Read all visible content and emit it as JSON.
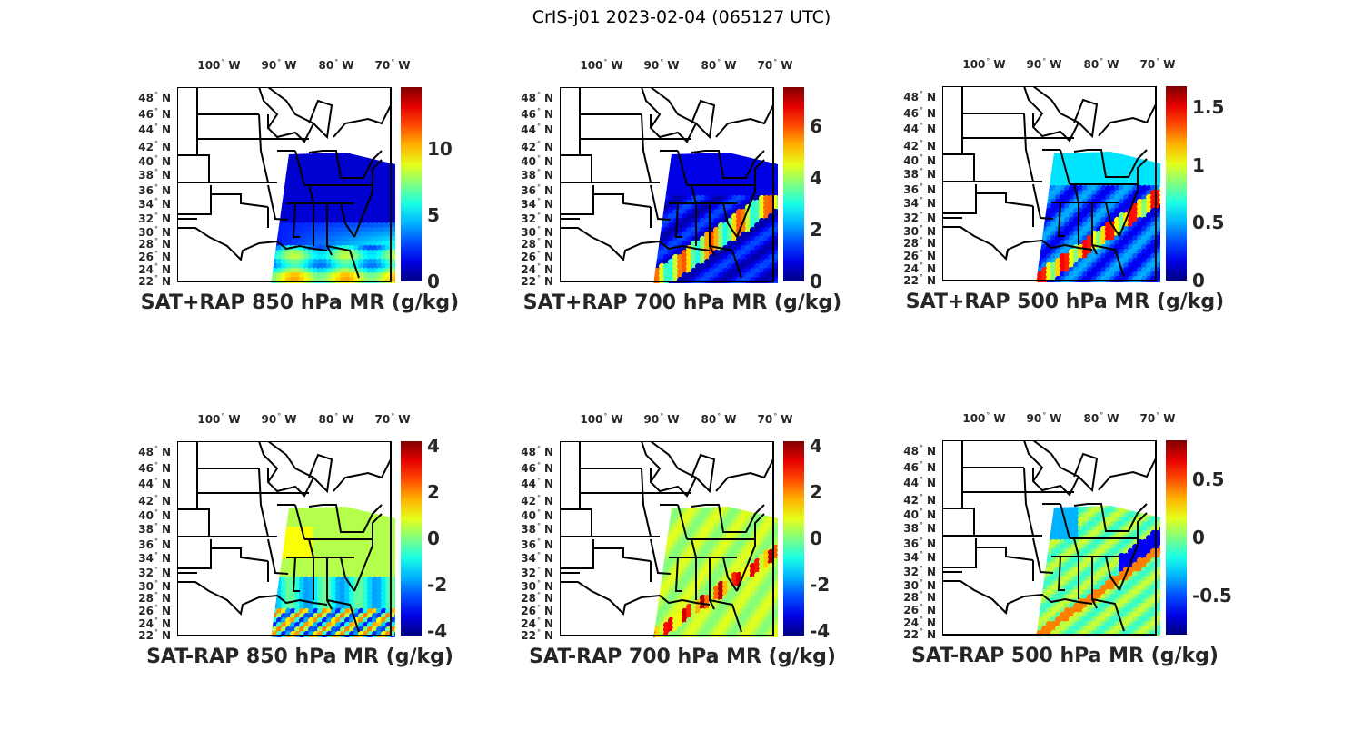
{
  "figure_title": "CrIS-j01 2023-02-04 (065127 UTC)",
  "lon_labels": [
    "100",
    "90",
    "80",
    "70"
  ],
  "lon_suffix": "W",
  "lat_labels": [
    "48",
    "46",
    "44",
    "42",
    "40",
    "38",
    "36",
    "34",
    "32",
    "30",
    "28",
    "26",
    "24",
    "22"
  ],
  "lat_suffix": "N",
  "degree_symbol": "°",
  "panels": [
    {
      "title": "SAT+RAP 850 hPa MR (g/kg)",
      "clim": [
        0,
        14.7
      ],
      "ticks": [
        {
          "v": 0,
          "label": "0"
        },
        {
          "v": 5,
          "label": "5"
        },
        {
          "v": 10,
          "label": "10"
        }
      ],
      "field": "sum850"
    },
    {
      "title": "SAT+RAP 700 hPa MR (g/kg)",
      "clim": [
        0,
        7.5
      ],
      "ticks": [
        {
          "v": 0,
          "label": "0"
        },
        {
          "v": 2,
          "label": "2"
        },
        {
          "v": 4,
          "label": "4"
        },
        {
          "v": 6,
          "label": "6"
        }
      ],
      "field": "sum700"
    },
    {
      "title": "SAT+RAP 500 hPa MR (g/kg)",
      "clim": [
        0,
        1.68
      ],
      "ticks": [
        {
          "v": 0,
          "label": "0"
        },
        {
          "v": 0.5,
          "label": "0.5"
        },
        {
          "v": 1,
          "label": "1"
        },
        {
          "v": 1.5,
          "label": "1.5"
        }
      ],
      "field": "sum500"
    },
    {
      "title": "SAT-RAP 850 hPa MR (g/kg)",
      "clim": [
        -4.2,
        4.2
      ],
      "ticks": [
        {
          "v": -4,
          "label": "-4"
        },
        {
          "v": -2,
          "label": "-2"
        },
        {
          "v": 0,
          "label": "0"
        },
        {
          "v": 2,
          "label": "2"
        },
        {
          "v": 4,
          "label": "4"
        }
      ],
      "field": "diff850"
    },
    {
      "title": "SAT-RAP 700 hPa MR (g/kg)",
      "clim": [
        -4.2,
        4.2
      ],
      "ticks": [
        {
          "v": -4,
          "label": "-4"
        },
        {
          "v": -2,
          "label": "-2"
        },
        {
          "v": 0,
          "label": "0"
        },
        {
          "v": 2,
          "label": "2"
        },
        {
          "v": 4,
          "label": "4"
        }
      ],
      "field": "diff700"
    },
    {
      "title": "SAT-RAP 500 hPa MR (g/kg)",
      "clim": [
        -0.84,
        0.84
      ],
      "ticks": [
        {
          "v": -0.5,
          "label": "-0.5"
        },
        {
          "v": 0,
          "label": "0"
        },
        {
          "v": 0.5,
          "label": "0.5"
        }
      ],
      "field": "diff500"
    }
  ]
}
